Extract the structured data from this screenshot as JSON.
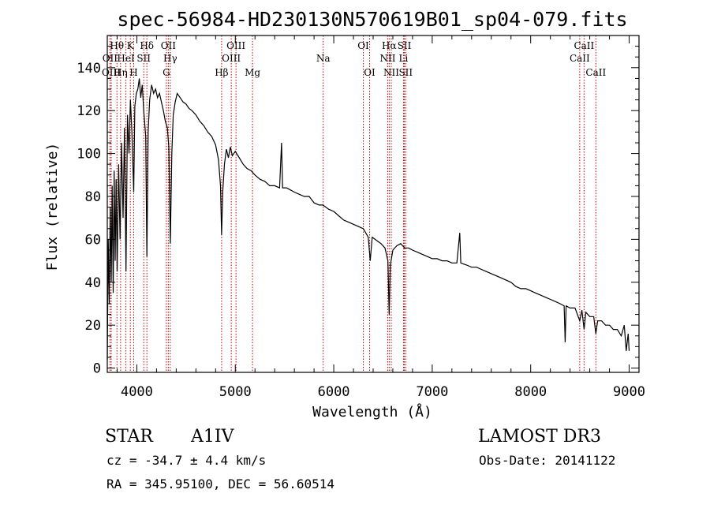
{
  "chart_data": {
    "type": "line",
    "title": "spec-56984-HD230130N570619B01_sp04-079.fits",
    "xlabel": "Wavelength (Å)",
    "ylabel": "Flux (relative)",
    "xlim": [
      3700,
      9100
    ],
    "ylim": [
      -2,
      155
    ],
    "x_ticks": [
      4000,
      5000,
      6000,
      7000,
      8000,
      9000
    ],
    "y_ticks": [
      0,
      20,
      40,
      60,
      80,
      100,
      120,
      140
    ],
    "series": [
      {
        "name": "flux",
        "points": [
          [
            3700,
            4
          ],
          [
            3710,
            60
          ],
          [
            3720,
            30
          ],
          [
            3730,
            75
          ],
          [
            3740,
            40
          ],
          [
            3750,
            85
          ],
          [
            3760,
            35
          ],
          [
            3770,
            92
          ],
          [
            3780,
            50
          ],
          [
            3790,
            88
          ],
          [
            3800,
            45
          ],
          [
            3815,
            95
          ],
          [
            3830,
            60
          ],
          [
            3845,
            105
          ],
          [
            3860,
            70
          ],
          [
            3875,
            112
          ],
          [
            3890,
            45
          ],
          [
            3905,
            118
          ],
          [
            3920,
            100
          ],
          [
            3935,
            125
          ],
          [
            3950,
            110
          ],
          [
            3968,
            82
          ],
          [
            3980,
            122
          ],
          [
            3995,
            128
          ],
          [
            4010,
            130
          ],
          [
            4025,
            135
          ],
          [
            4040,
            126
          ],
          [
            4055,
            132
          ],
          [
            4070,
            120
          ],
          [
            4090,
            108
          ],
          [
            4102,
            52
          ],
          [
            4115,
            110
          ],
          [
            4130,
            125
          ],
          [
            4150,
            132
          ],
          [
            4170,
            128
          ],
          [
            4190,
            130
          ],
          [
            4210,
            126
          ],
          [
            4230,
            128
          ],
          [
            4250,
            124
          ],
          [
            4270,
            120
          ],
          [
            4290,
            115
          ],
          [
            4310,
            112
          ],
          [
            4325,
            103
          ],
          [
            4340,
            58
          ],
          [
            4355,
            100
          ],
          [
            4370,
            118
          ],
          [
            4390,
            124
          ],
          [
            4410,
            128
          ],
          [
            4440,
            126
          ],
          [
            4470,
            124
          ],
          [
            4500,
            123
          ],
          [
            4530,
            121
          ],
          [
            4560,
            120
          ],
          [
            4600,
            118
          ],
          [
            4640,
            115
          ],
          [
            4680,
            113
          ],
          [
            4720,
            110
          ],
          [
            4760,
            108
          ],
          [
            4800,
            104
          ],
          [
            4830,
            97
          ],
          [
            4850,
            85
          ],
          [
            4861,
            62
          ],
          [
            4872,
            82
          ],
          [
            4890,
            95
          ],
          [
            4910,
            102
          ],
          [
            4930,
            98
          ],
          [
            4950,
            103
          ],
          [
            4970,
            99
          ],
          [
            5000,
            101
          ],
          [
            5040,
            98
          ],
          [
            5080,
            95
          ],
          [
            5120,
            93
          ],
          [
            5160,
            92
          ],
          [
            5200,
            90
          ],
          [
            5250,
            88
          ],
          [
            5300,
            87
          ],
          [
            5350,
            85
          ],
          [
            5400,
            85
          ],
          [
            5450,
            84
          ],
          [
            5470,
            105
          ],
          [
            5480,
            84
          ],
          [
            5520,
            84
          ],
          [
            5560,
            83
          ],
          [
            5600,
            82
          ],
          [
            5650,
            81
          ],
          [
            5700,
            80
          ],
          [
            5750,
            80
          ],
          [
            5800,
            77
          ],
          [
            5850,
            76
          ],
          [
            5890,
            76
          ],
          [
            5950,
            74
          ],
          [
            6000,
            73
          ],
          [
            6050,
            71
          ],
          [
            6100,
            69
          ],
          [
            6150,
            68
          ],
          [
            6200,
            67
          ],
          [
            6250,
            66
          ],
          [
            6300,
            65
          ],
          [
            6350,
            61
          ],
          [
            6370,
            50
          ],
          [
            6390,
            61
          ],
          [
            6420,
            60
          ],
          [
            6450,
            59
          ],
          [
            6480,
            58
          ],
          [
            6520,
            56
          ],
          [
            6550,
            50
          ],
          [
            6563,
            25
          ],
          [
            6575,
            48
          ],
          [
            6600,
            55
          ],
          [
            6640,
            57
          ],
          [
            6680,
            58
          ],
          [
            6720,
            56
          ],
          [
            6760,
            56
          ],
          [
            6800,
            55
          ],
          [
            6850,
            54
          ],
          [
            6900,
            53
          ],
          [
            6950,
            52
          ],
          [
            7000,
            51
          ],
          [
            7050,
            51
          ],
          [
            7100,
            50
          ],
          [
            7150,
            50
          ],
          [
            7200,
            49
          ],
          [
            7250,
            49
          ],
          [
            7280,
            63
          ],
          [
            7290,
            49
          ],
          [
            7350,
            48
          ],
          [
            7400,
            47
          ],
          [
            7450,
            47
          ],
          [
            7500,
            46
          ],
          [
            7550,
            45
          ],
          [
            7600,
            44
          ],
          [
            7650,
            43
          ],
          [
            7700,
            42
          ],
          [
            7750,
            41
          ],
          [
            7800,
            40
          ],
          [
            7850,
            38
          ],
          [
            7900,
            37
          ],
          [
            7950,
            37
          ],
          [
            8000,
            36
          ],
          [
            8050,
            35
          ],
          [
            8100,
            34
          ],
          [
            8150,
            33
          ],
          [
            8200,
            32
          ],
          [
            8250,
            31
          ],
          [
            8300,
            30
          ],
          [
            8340,
            29
          ],
          [
            8350,
            12
          ],
          [
            8360,
            29
          ],
          [
            8400,
            28
          ],
          [
            8450,
            28
          ],
          [
            8498,
            22
          ],
          [
            8520,
            27
          ],
          [
            8542,
            18
          ],
          [
            8560,
            26
          ],
          [
            8600,
            24
          ],
          [
            8640,
            24
          ],
          [
            8662,
            16
          ],
          [
            8680,
            22
          ],
          [
            8720,
            22
          ],
          [
            8760,
            20
          ],
          [
            8800,
            20
          ],
          [
            8840,
            18
          ],
          [
            8880,
            18
          ],
          [
            8920,
            15
          ],
          [
            8950,
            20
          ],
          [
            8970,
            8
          ],
          [
            8990,
            16
          ],
          [
            9000,
            8
          ]
        ]
      }
    ],
    "spectral_lines": [
      {
        "label": "Hθ",
        "x": 3798,
        "row": 1
      },
      {
        "label": "OII",
        "x": 3727,
        "row": 2
      },
      {
        "label": "OIII",
        "x": 3740,
        "row": 3
      },
      {
        "label": "HeI",
        "x": 3889,
        "row": 2
      },
      {
        "label": "Hη",
        "x": 3835,
        "row": 3
      },
      {
        "label": "K",
        "x": 3934,
        "row": 1
      },
      {
        "label": "H",
        "x": 3968,
        "row": 3
      },
      {
        "label": "SII",
        "x": 4070,
        "row": 2
      },
      {
        "label": "Hδ",
        "x": 4102,
        "row": 1
      },
      {
        "label": "OII",
        "x": 4320,
        "row": 1
      },
      {
        "label": "Hγ",
        "x": 4340,
        "row": 2
      },
      {
        "label": "G",
        "x": 4300,
        "row": 3
      },
      {
        "label": "OIII",
        "x": 5007,
        "row": 1
      },
      {
        "label": "OIII",
        "x": 4959,
        "row": 2
      },
      {
        "label": "Hβ",
        "x": 4861,
        "row": 3
      },
      {
        "label": "Mg",
        "x": 5175,
        "row": 3
      },
      {
        "label": "Na",
        "x": 5893,
        "row": 2
      },
      {
        "label": "OI",
        "x": 6300,
        "row": 1
      },
      {
        "label": "OI",
        "x": 6364,
        "row": 3
      },
      {
        "label": "Hα",
        "x": 6563,
        "row": 1
      },
      {
        "label": "NII",
        "x": 6548,
        "row": 2
      },
      {
        "label": "NII",
        "x": 6584,
        "row": 3
      },
      {
        "label": "SII",
        "x": 6717,
        "row": 1
      },
      {
        "label": "Li",
        "x": 6708,
        "row": 2
      },
      {
        "label": "SII",
        "x": 6731,
        "row": 3
      },
      {
        "label": "CaII",
        "x": 8542,
        "row": 1
      },
      {
        "label": "CaII",
        "x": 8498,
        "row": 2
      },
      {
        "label": "CaII",
        "x": 8662,
        "row": 3
      }
    ]
  },
  "footer": {
    "class_label": "STAR",
    "subclass": "A1IV",
    "cz": "cz = -34.7 ± 4.4 km/s",
    "coords": "RA = 345.95100, DEC =  56.60514",
    "survey": "LAMOST DR3",
    "obs_date": "Obs-Date: 20141122"
  },
  "colors": {
    "line": "#000000",
    "marker": "#c00000"
  }
}
